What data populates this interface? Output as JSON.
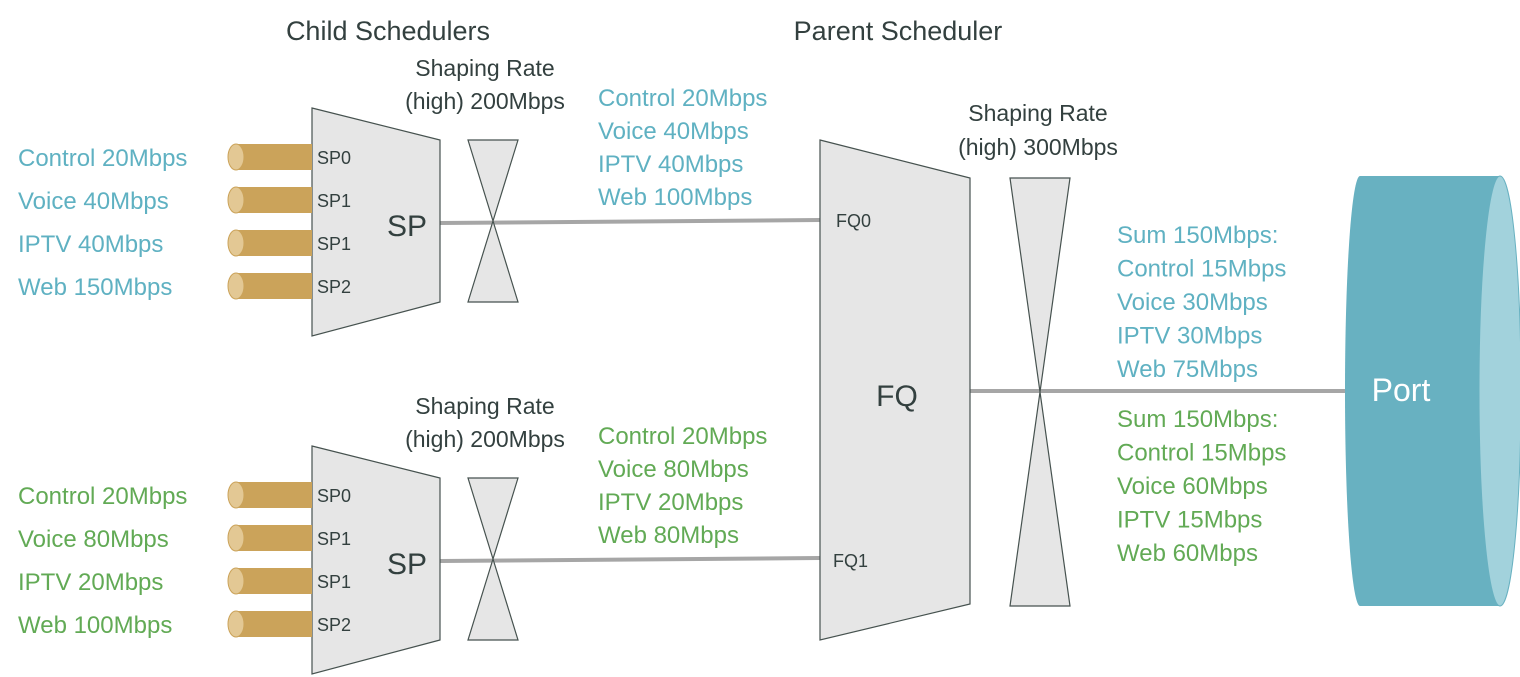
{
  "colors": {
    "blue": "#5fb1c2",
    "green": "#62aa55",
    "dark": "#33403f",
    "shape_fill": "#e6e6e6",
    "cylinder": "#cba35a",
    "cylinder_face": "#e3c894",
    "port": "#68b1c1",
    "port_face": "#a2d2dc",
    "line": "#a6a6a6"
  },
  "titles": {
    "child": "Child Schedulers",
    "parent": "Parent Scheduler"
  },
  "child_top": {
    "shaping": [
      "Shaping Rate",
      "(high) 200Mbps"
    ],
    "label": "SP",
    "queues": [
      {
        "in": "Control 20Mbps",
        "q": "SP0"
      },
      {
        "in": "Voice 40Mbps",
        "q": "SP1"
      },
      {
        "in": "IPTV 40Mbps",
        "q": "SP1"
      },
      {
        "in": "Web 150Mbps",
        "q": "SP2"
      }
    ],
    "out": [
      "Control 20Mbps",
      "Voice 40Mbps",
      "IPTV 40Mbps",
      "Web 100Mbps"
    ]
  },
  "child_bottom": {
    "shaping": [
      "Shaping Rate",
      "(high) 200Mbps"
    ],
    "label": "SP",
    "queues": [
      {
        "in": "Control 20Mbps",
        "q": "SP0"
      },
      {
        "in": "Voice 80Mbps",
        "q": "SP1"
      },
      {
        "in": "IPTV 20Mbps",
        "q": "SP1"
      },
      {
        "in": "Web 100Mbps",
        "q": "SP2"
      }
    ],
    "out": [
      "Control 20Mbps",
      "Voice 80Mbps",
      "IPTV 20Mbps",
      "Web 80Mbps"
    ]
  },
  "parent": {
    "label": "FQ",
    "inputs": [
      "FQ0",
      "FQ1"
    ],
    "shaping": [
      "Shaping Rate",
      "(high) 300Mbps"
    ],
    "out_top": [
      "Sum 150Mbps:",
      "Control 15Mbps",
      "Voice 30Mbps",
      "IPTV 30Mbps",
      "Web 75Mbps"
    ],
    "out_bottom": [
      "Sum 150Mbps:",
      "Control 15Mbps",
      "Voice 60Mbps",
      "IPTV 15Mbps",
      "Web 60Mbps"
    ]
  },
  "port": {
    "label": "Port"
  }
}
